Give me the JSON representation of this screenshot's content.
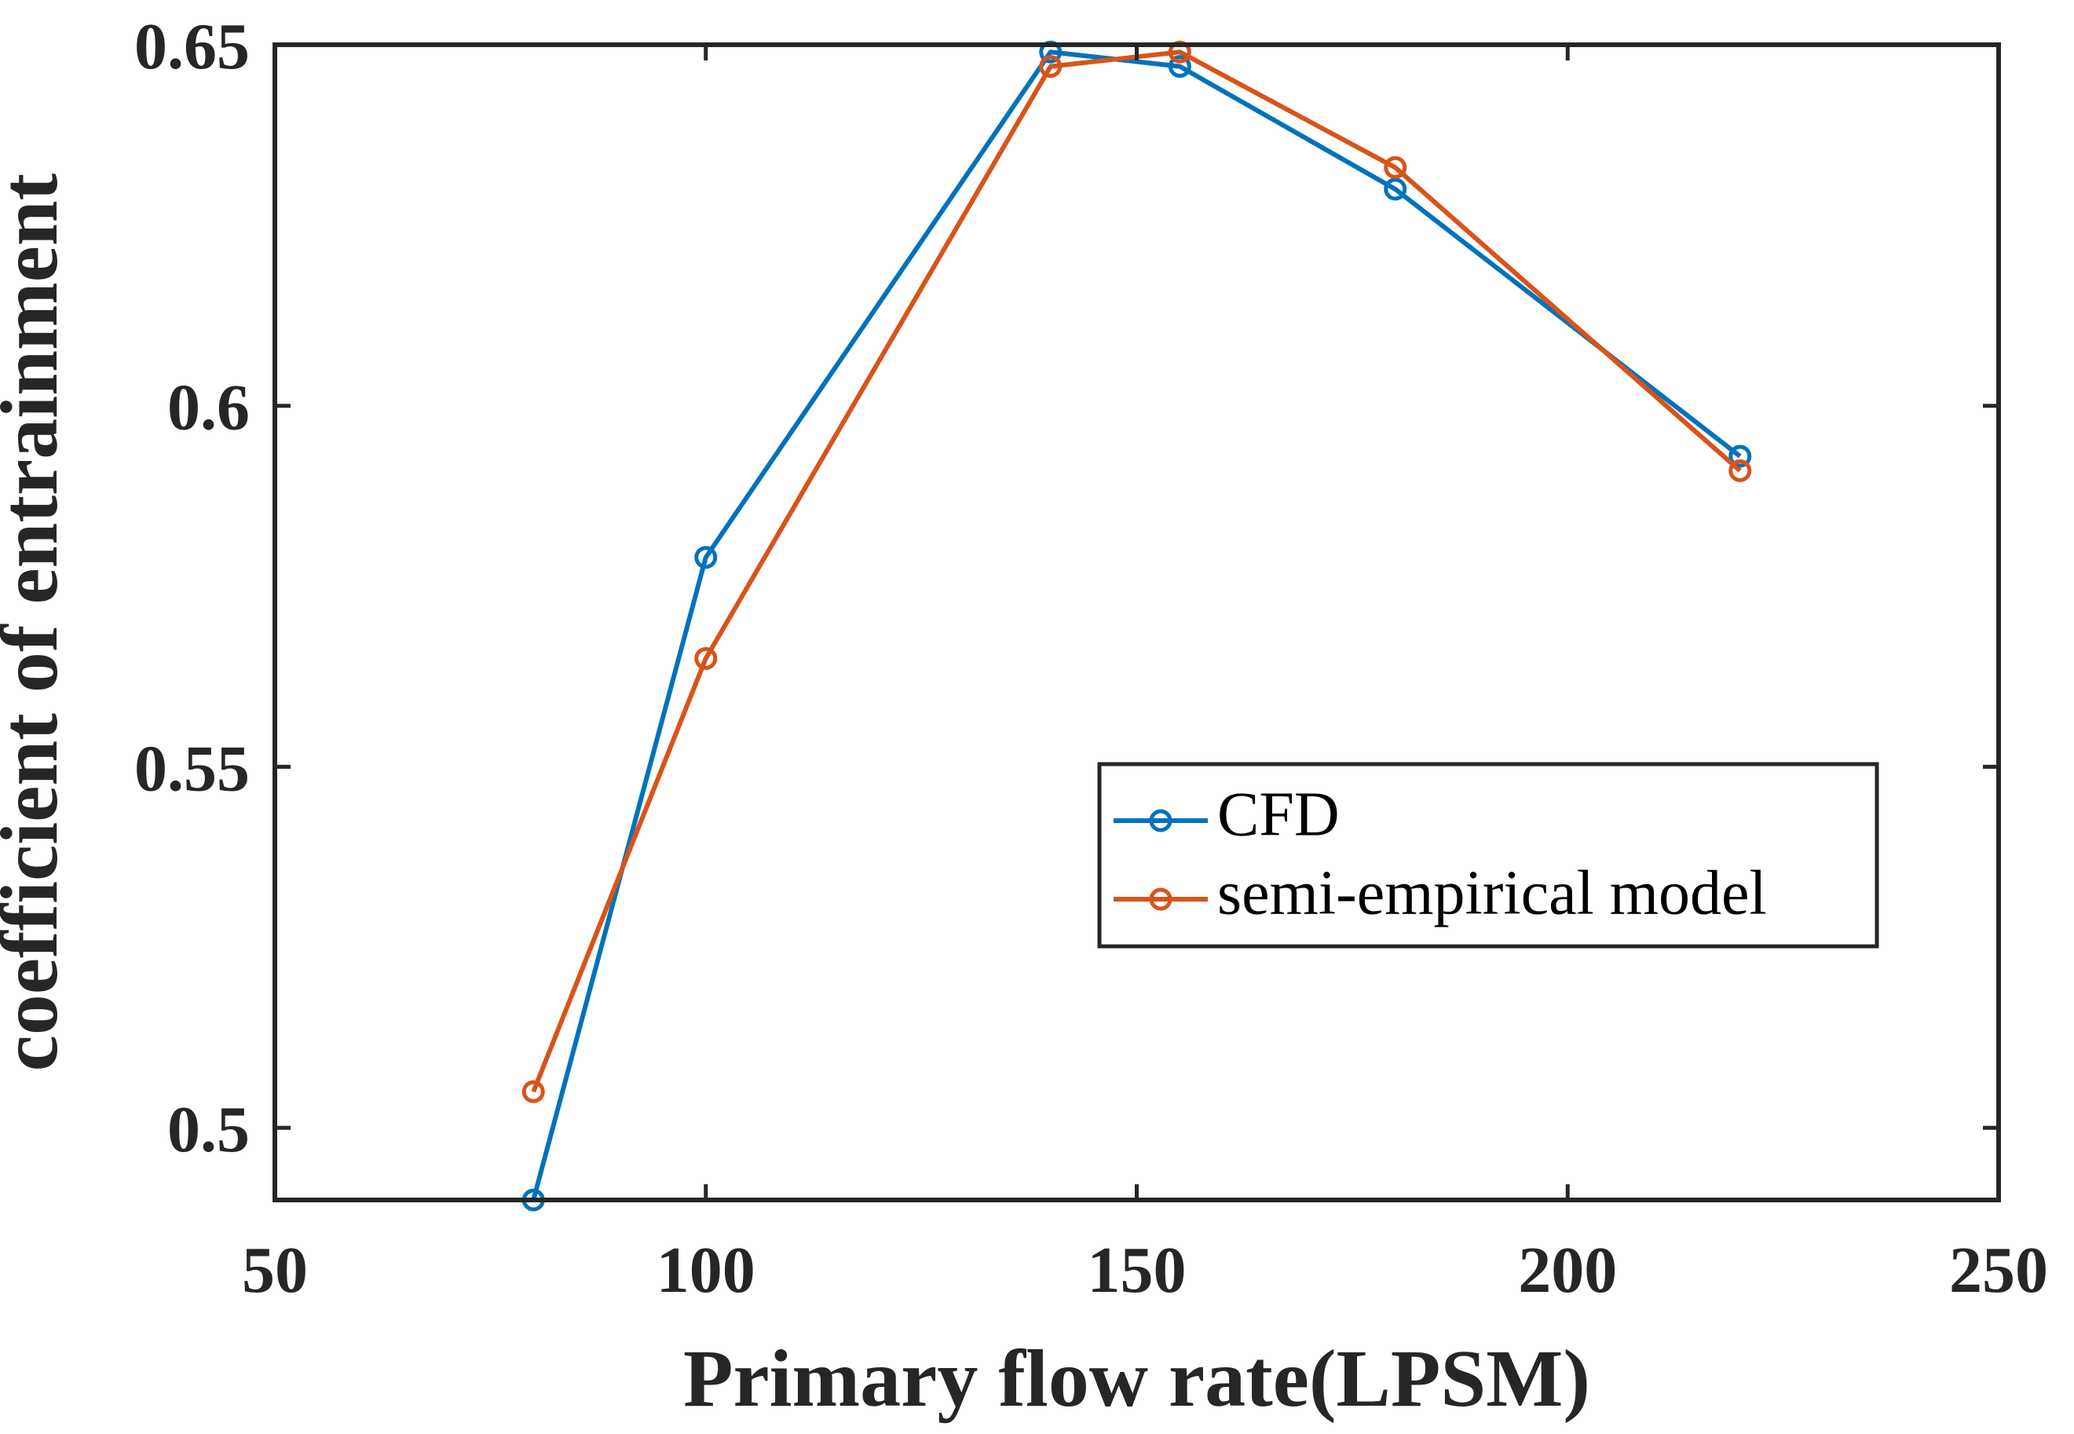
{
  "chart_data": {
    "type": "line",
    "title": "",
    "xlabel": "Primary flow rate(LPSM)",
    "ylabel": "coefficient of entrainment",
    "xlim": [
      50,
      250
    ],
    "ylim": [
      0.49,
      0.65
    ],
    "xticks": [
      50,
      100,
      150,
      200,
      250
    ],
    "xtick_labels": [
      "50",
      "100",
      "150",
      "200",
      "250"
    ],
    "yticks": [
      0.5,
      0.55,
      0.6,
      0.65
    ],
    "ytick_labels": [
      "0.5",
      "0.55",
      "0.6",
      "0.65"
    ],
    "grid": false,
    "legend_position": "center-right",
    "series": [
      {
        "name": "CFD",
        "color": "#0072BD",
        "marker": "circle",
        "x": [
          80,
          100,
          140,
          155,
          180,
          220
        ],
        "y": [
          0.49,
          0.579,
          0.649,
          0.647,
          0.63,
          0.593
        ]
      },
      {
        "name": "semi-empirical model",
        "color": "#D95319",
        "marker": "circle",
        "x": [
          80,
          100,
          140,
          155,
          180,
          220
        ],
        "y": [
          0.505,
          0.565,
          0.647,
          0.649,
          0.633,
          0.591
        ]
      }
    ]
  }
}
